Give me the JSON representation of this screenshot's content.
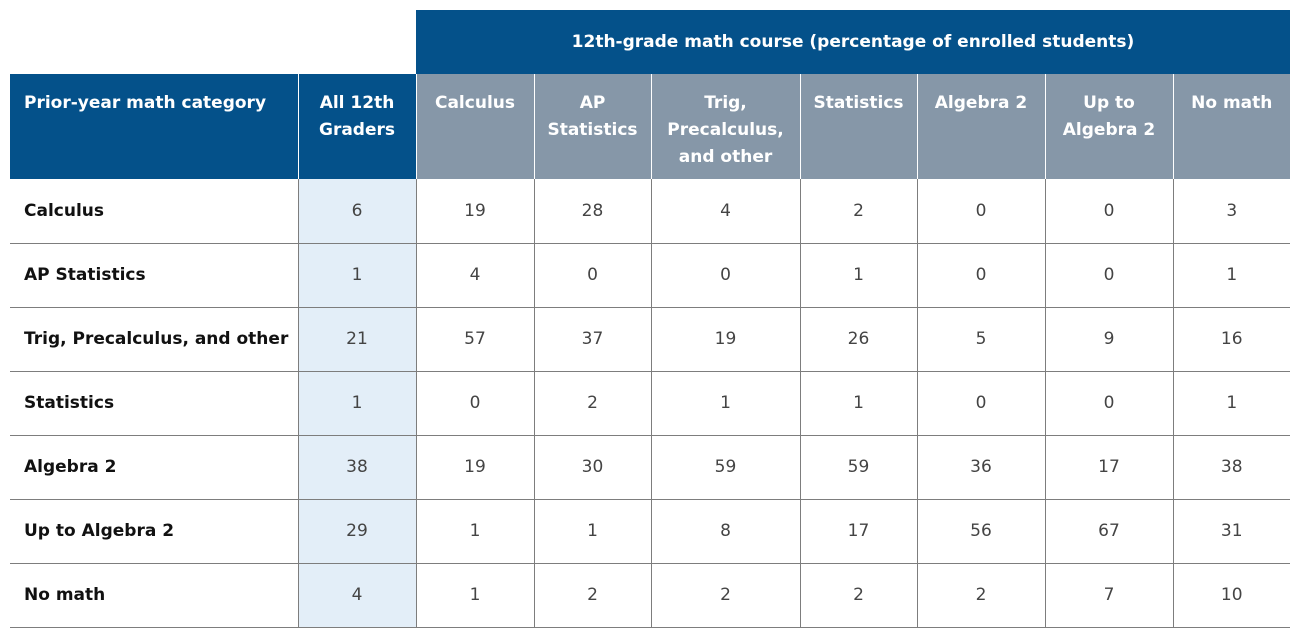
{
  "chart_data": {
    "type": "table",
    "title": "12th-grade math course (percentage of enrolled students)",
    "row_header_label": "Prior-year math category",
    "columns": [
      "All 12th Graders",
      "Calculus",
      "AP Statistics",
      "Trig, Precalculus, and other",
      "Statistics",
      "Algebra  2",
      "Up to Algebra 2",
      "No math"
    ],
    "rows": [
      {
        "label": "Calculus",
        "values": [
          6,
          19,
          28,
          4,
          2,
          0,
          0,
          3
        ]
      },
      {
        "label": "AP Statistics",
        "values": [
          1,
          4,
          0,
          0,
          1,
          0,
          0,
          1
        ]
      },
      {
        "label": "Trig, Precalculus, and other",
        "values": [
          21,
          57,
          37,
          19,
          26,
          5,
          9,
          16
        ]
      },
      {
        "label": "Statistics",
        "values": [
          1,
          0,
          2,
          1,
          1,
          0,
          0,
          1
        ]
      },
      {
        "label": "Algebra  2",
        "values": [
          38,
          19,
          30,
          59,
          59,
          36,
          17,
          38
        ]
      },
      {
        "label": "Up to Algebra 2",
        "values": [
          29,
          1,
          1,
          8,
          17,
          56,
          67,
          31
        ]
      },
      {
        "label": "No math",
        "values": [
          4,
          1,
          2,
          2,
          2,
          2,
          7,
          10
        ]
      }
    ],
    "colors": {
      "header_blue": "#04518a",
      "header_gray": "#8697a8",
      "highlight_column": "#e3eef8"
    }
  }
}
